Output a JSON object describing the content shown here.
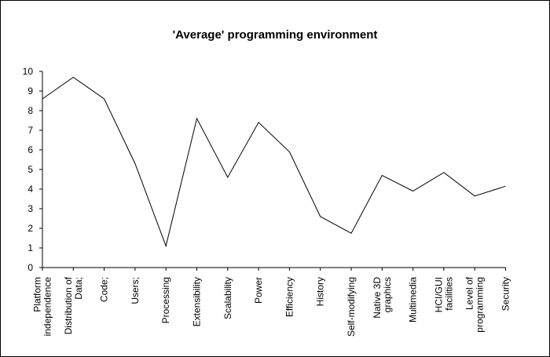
{
  "chart_data": {
    "type": "line",
    "title": "'Average' programming environment",
    "xlabel": "",
    "ylabel": "",
    "ylim": [
      0,
      10
    ],
    "yticks": [
      0,
      1,
      2,
      3,
      4,
      5,
      6,
      7,
      8,
      9,
      10
    ],
    "grid": false,
    "legend": "none",
    "line_color": "#000000",
    "categories": [
      [
        "Platform",
        "independence"
      ],
      [
        "Distribution of",
        "Data;"
      ],
      [
        "Code;"
      ],
      [
        "Users;"
      ],
      [
        "Processing"
      ],
      [
        "Extensibility"
      ],
      [
        "Scalability"
      ],
      [
        "Power"
      ],
      [
        "Efficiency"
      ],
      [
        "History"
      ],
      [
        "Self-modifying"
      ],
      [
        "Native 3D",
        "graphics"
      ],
      [
        "Multimedia"
      ],
      [
        "HCI/GUI",
        "facilities"
      ],
      [
        "Level of",
        "programming"
      ],
      [
        "Security"
      ]
    ],
    "values": [
      8.6,
      9.7,
      8.6,
      5.3,
      1.1,
      7.6,
      4.6,
      7.4,
      5.9,
      2.6,
      1.75,
      4.7,
      3.9,
      4.85,
      3.65,
      4.15
    ]
  }
}
